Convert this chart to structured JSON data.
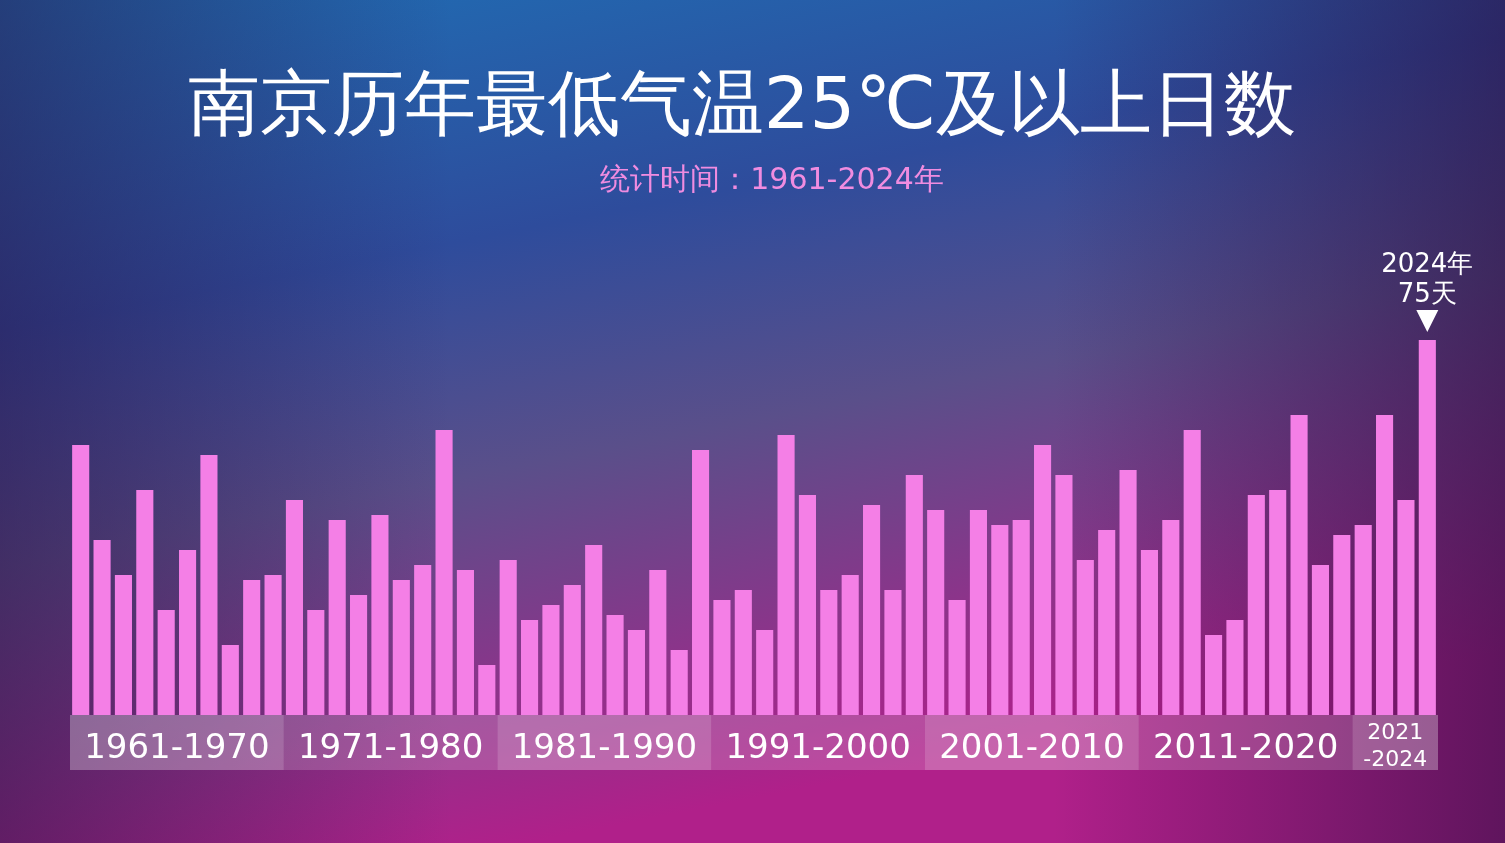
{
  "chart_data": {
    "type": "bar",
    "title": "南京历年最低气温25℃及以上日数",
    "subtitle": "统计时间：1961-2024年",
    "categories": [
      null,
      null,
      null,
      null,
      null,
      null,
      null,
      null,
      null,
      null,
      null,
      null,
      null,
      null,
      null,
      null,
      null,
      null,
      null,
      null,
      null,
      null,
      null,
      null,
      null,
      null,
      null,
      null,
      null,
      null,
      null,
      null,
      null,
      null,
      null,
      null,
      null,
      null,
      null,
      null,
      null,
      null,
      null,
      null,
      null,
      null,
      null,
      null,
      null,
      null,
      null,
      null,
      null,
      null,
      null,
      null,
      null,
      null,
      null,
      null,
      null,
      null,
      null,
      null
    ],
    "values": [
      54,
      35,
      28,
      45,
      21,
      33,
      52,
      14,
      27,
      28,
      43,
      21,
      39,
      24,
      40,
      27,
      30,
      57,
      29,
      10,
      31,
      19,
      22,
      26,
      34,
      20,
      17,
      29,
      13,
      53,
      23,
      25,
      17,
      56,
      44,
      25,
      28,
      42,
      25,
      48,
      41,
      23,
      41,
      38,
      39,
      54,
      48,
      31,
      37,
      49,
      33,
      39,
      57,
      16,
      19,
      44,
      45,
      60,
      30,
      36,
      38,
      60,
      43,
      75
    ],
    "value_labels": [
      null,
      null,
      null,
      null,
      null,
      null,
      null,
      null,
      null,
      null,
      null,
      null,
      null,
      null,
      null,
      null,
      null,
      null,
      null,
      null,
      null,
      null,
      null,
      null,
      null,
      null,
      null,
      null,
      null,
      null,
      null,
      null,
      null,
      null,
      null,
      null,
      null,
      null,
      null,
      null,
      null,
      null,
      null,
      null,
      null,
      null,
      null,
      null,
      null,
      null,
      null,
      null,
      null,
      null,
      null,
      null,
      null,
      null,
      null,
      null,
      null,
      null,
      null,
      "75天"
    ],
    "color": "#f47fe6",
    "annotations": [
      "1961-1970",
      "1971-1980",
      "1981-1990",
      "1991-2000",
      "2001-2010",
      "2011-2020",
      "2021-2024",
      {
        "text": "2024年",
        "y": 75
      }
    ]
  }
}
